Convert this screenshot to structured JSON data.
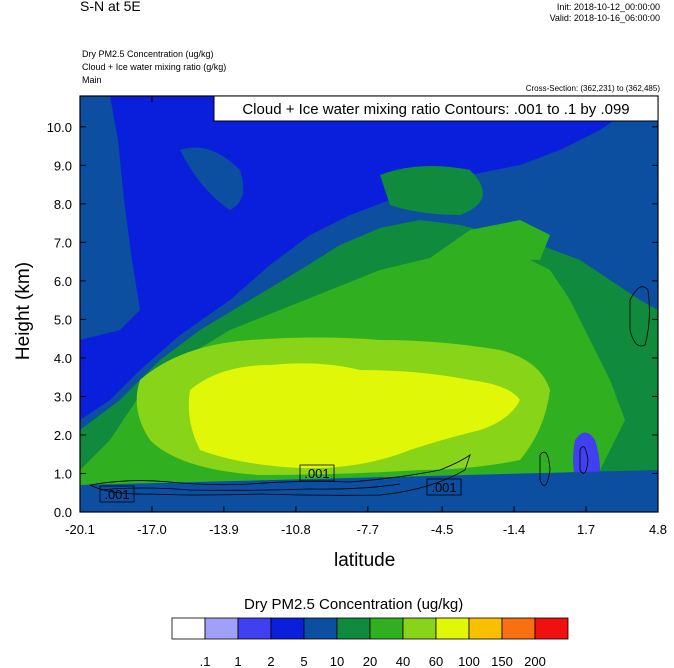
{
  "header": {
    "title": "S-N at 5E",
    "init": "Init: 2018-10-12_00:00:00",
    "valid": "Valid: 2018-10-16_06:00:00"
  },
  "fields": [
    "Dry PM2.5 Concentration   (ug/kg)",
    "Cloud + Ice water mixing ratio   (g/kg)",
    "Main"
  ],
  "cross_section": "Cross-Section: (362,231) to (362,485)",
  "colorbar": {
    "title": "Dry PM2.5 Concentration  (ug/kg)",
    "labels": [
      ".1",
      "1",
      "2",
      "5",
      "10",
      "20",
      "40",
      "60",
      "100",
      "150",
      "200"
    ],
    "colors": [
      "#ffffff",
      "#a0a0f8",
      "#4040f0",
      "#0a1fdc",
      "#0c4ea0",
      "#108a3c",
      "#30b020",
      "#88d418",
      "#e0f808",
      "#f8c000",
      "#f87010",
      "#f01010"
    ]
  },
  "chart_data": {
    "type": "heatmap",
    "title": "Cloud + Ice water mixing ratio Contours: .001 to .1 by .099",
    "xlabel": "latitude",
    "ylabel": "Height (km)",
    "xlim": [
      -20.1,
      4.8
    ],
    "ylim": [
      0.0,
      10.8
    ],
    "x_ticks": [
      "-20.1",
      "-17.0",
      "-13.9",
      "-10.8",
      "-7.7",
      "-4.5",
      "-1.4",
      "1.7",
      "4.8"
    ],
    "y_ticks": [
      "0.0",
      "1.0",
      "2.0",
      "3.0",
      "4.0",
      "5.0",
      "6.0",
      "7.0",
      "8.0",
      "9.0",
      "10.0"
    ],
    "contour_labels": [
      ".001",
      ".001",
      ".001"
    ]
  }
}
